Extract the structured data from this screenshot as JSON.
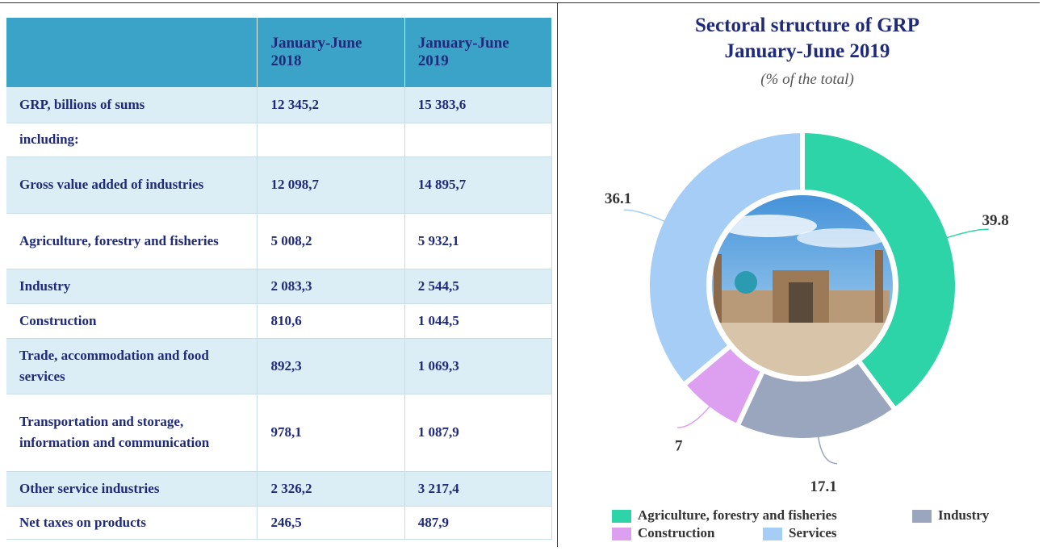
{
  "table": {
    "header": [
      "January-June 2018",
      "January-June 2019"
    ],
    "rows": [
      [
        "GRP, billions of sums",
        "12 345,2",
        "15 383,6"
      ],
      [
        "including:"
      ],
      [
        "Gross value added of industries",
        "12 098,7",
        "14 895,7"
      ],
      [
        "Agriculture, forestry and fisheries",
        "5 008,2",
        "5 932,1"
      ],
      [
        "Industry",
        "2 083,3",
        "2 544,5"
      ],
      [
        "Construction",
        "810,6",
        "1 044,5"
      ],
      [
        "Trade, accommodation and food services",
        "892,3",
        "1 069,3"
      ],
      [
        "Transportation and storage, information and communication",
        "978,1",
        "1 087,9"
      ],
      [
        "Other service industries",
        "2 326,2",
        "3 217,4"
      ],
      [
        "Net taxes on products",
        "246,5",
        "487,9"
      ]
    ]
  },
  "chart_data": {
    "type": "pie",
    "title": "Sectoral structure of GRP January-June 2019",
    "subtitle": "(% of the total)",
    "categories": [
      "Agriculture, forestry and fisheries",
      "Industry",
      "Construction",
      "Services"
    ],
    "values": [
      39.8,
      17.1,
      7,
      36.1
    ],
    "colors": [
      "#2dd4a8",
      "#9aa5be",
      "#dda0f0",
      "#a5cdf5"
    ]
  }
}
